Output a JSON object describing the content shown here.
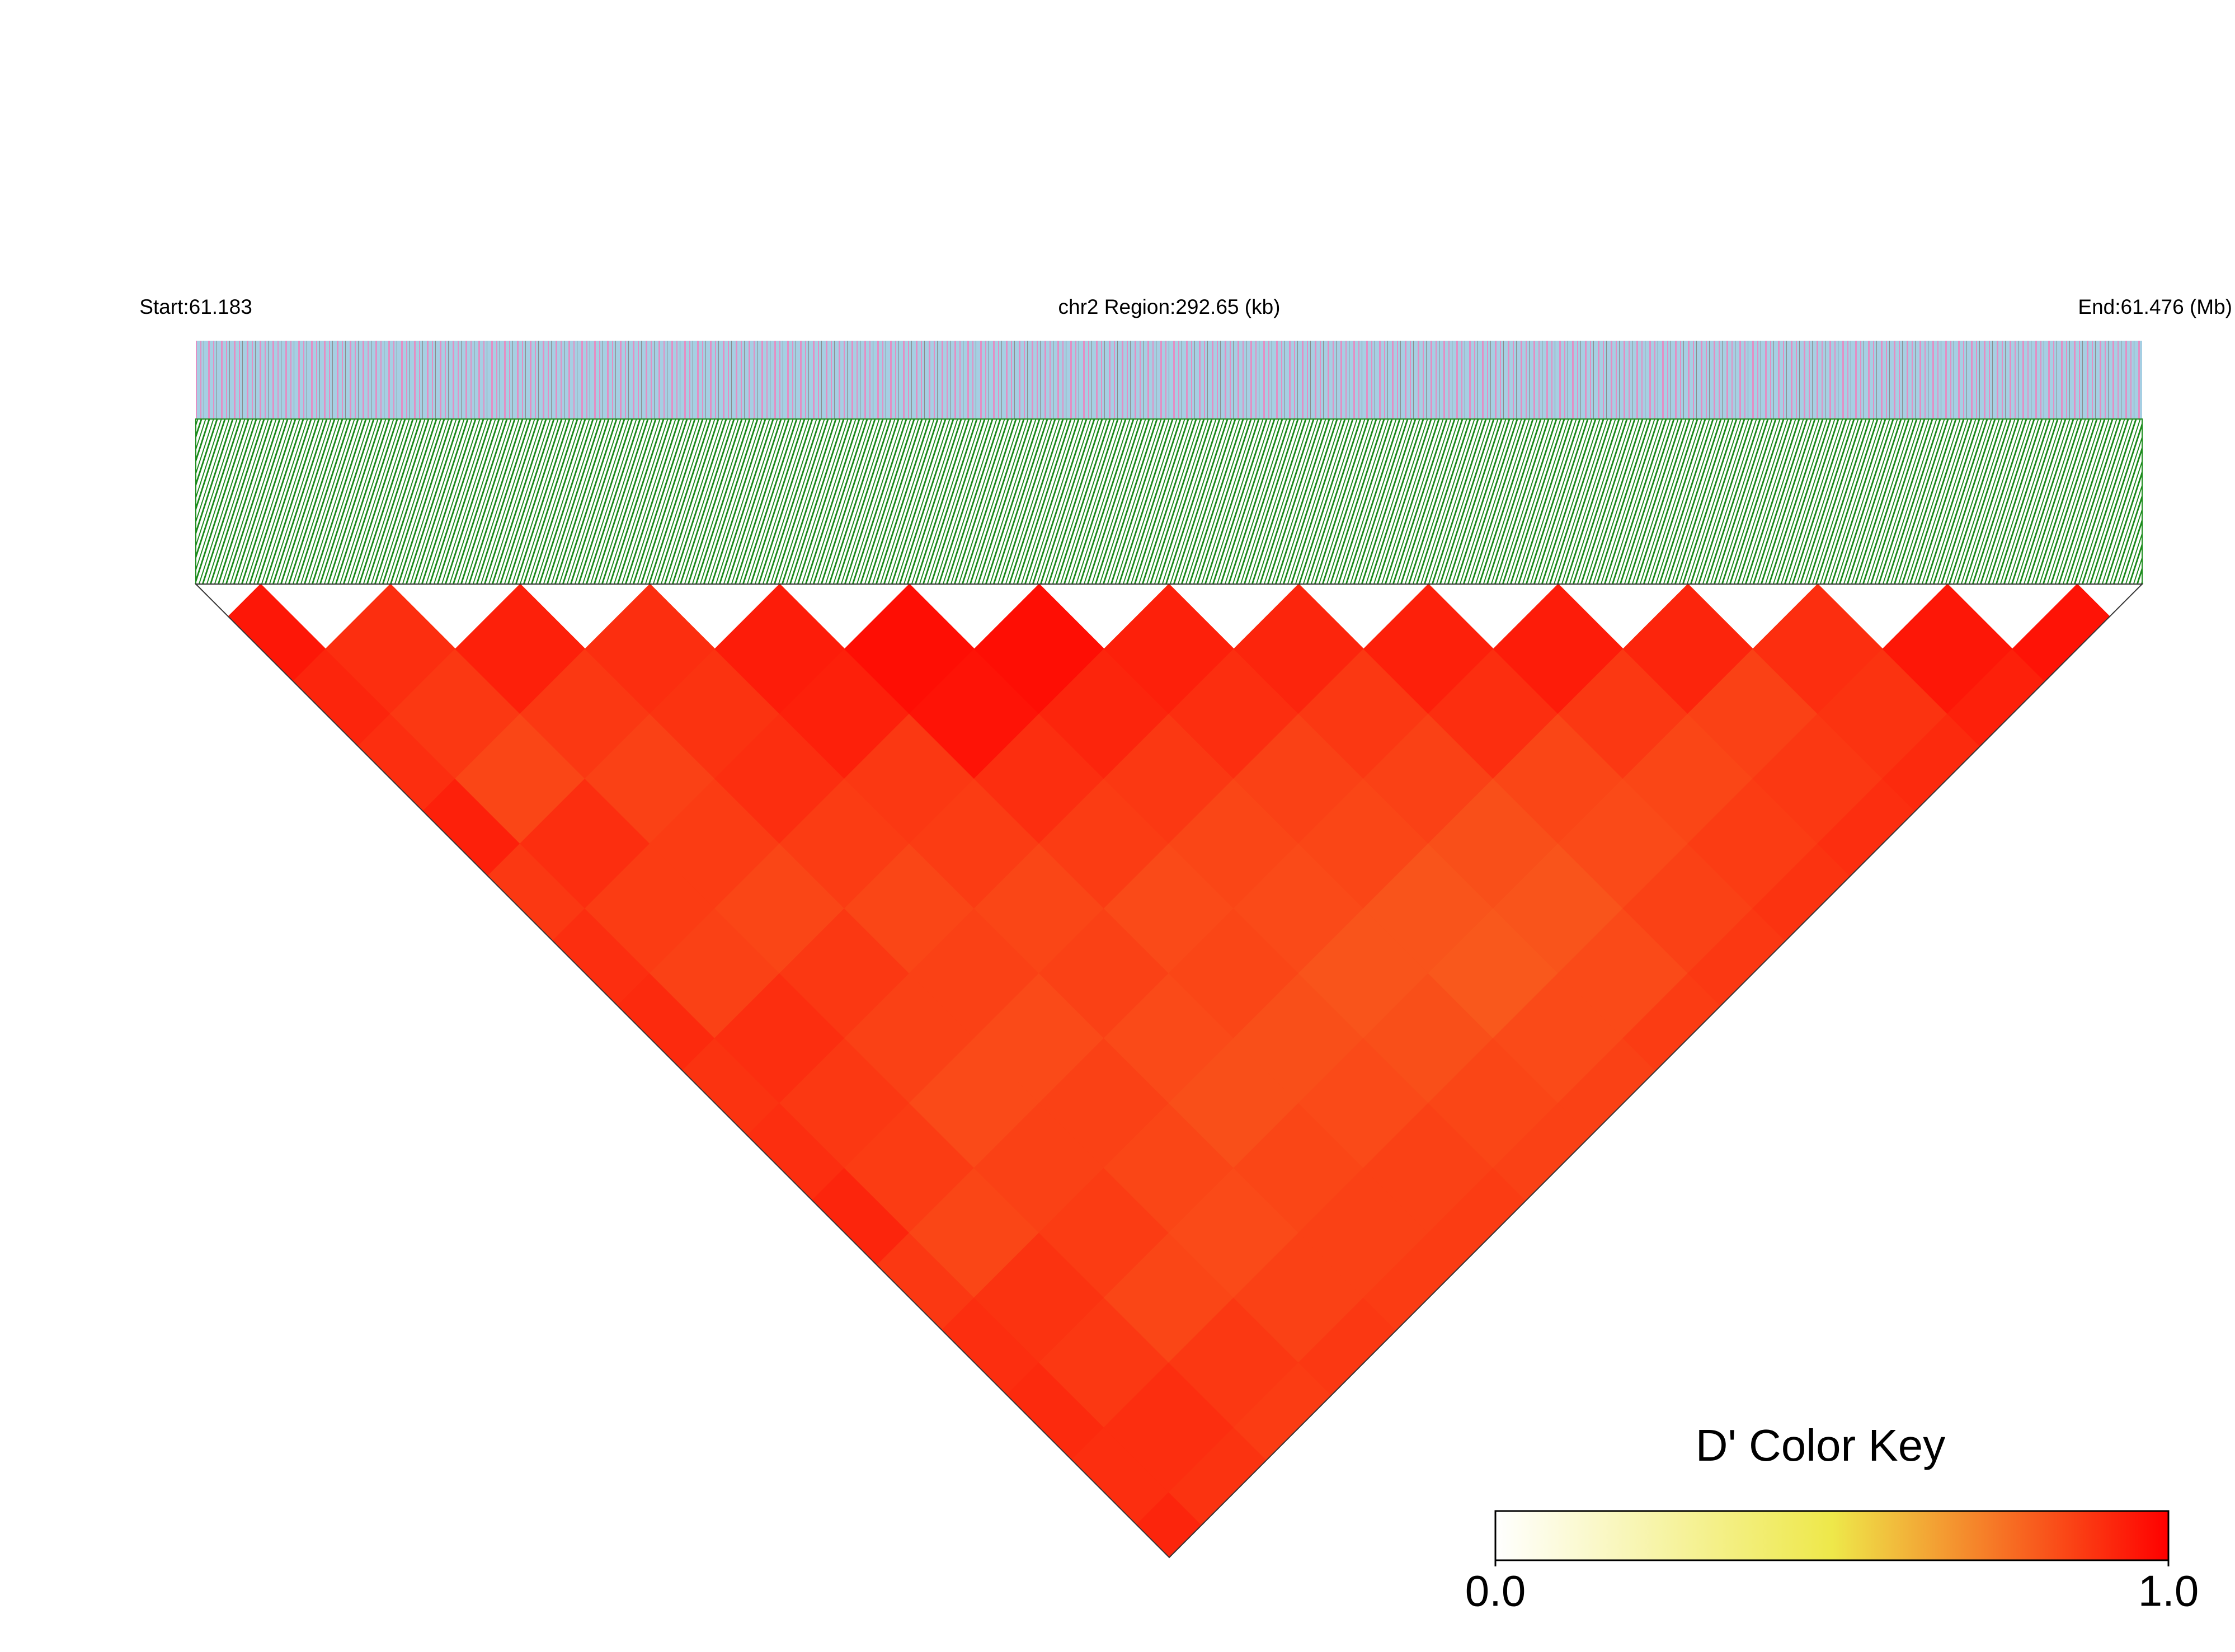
{
  "chart_data": {
    "type": "heatmap",
    "title": "chr2 Region:292.65 (kb)",
    "start_label": "Start:61.183",
    "end_label": "End:61.476 (Mb)",
    "values": [
      [
        0.95,
        0.92,
        0.9,
        0.93,
        0.88,
        0.9,
        0.91,
        0.89,
        0.9,
        0.92,
        0.88,
        0.9,
        0.91,
        0.9,
        0.92
      ],
      [
        0.9,
        0.88,
        0.85,
        0.9,
        0.87,
        0.86,
        0.9,
        0.88,
        0.87,
        0.85,
        0.89,
        0.88,
        0.9,
        0.89
      ],
      [
        0.93,
        0.88,
        0.86,
        0.87,
        0.85,
        0.88,
        0.86,
        0.84,
        0.86,
        0.87,
        0.85,
        0.88,
        0.87
      ],
      [
        0.9,
        0.89,
        0.9,
        0.87,
        0.85,
        0.86,
        0.84,
        0.86,
        0.85,
        0.84,
        0.86,
        0.88
      ],
      [
        0.94,
        0.93,
        0.88,
        0.87,
        0.85,
        0.86,
        0.84,
        0.83,
        0.85,
        0.86,
        0.87
      ],
      [
        0.97,
        0.96,
        0.9,
        0.87,
        0.84,
        0.85,
        0.83,
        0.84,
        0.86,
        0.87
      ],
      [
        0.97,
        0.92,
        0.88,
        0.85,
        0.84,
        0.82,
        0.83,
        0.85,
        0.86
      ],
      [
        0.93,
        0.9,
        0.86,
        0.85,
        0.82,
        0.81,
        0.84,
        0.86
      ],
      [
        0.92,
        0.88,
        0.86,
        0.83,
        0.82,
        0.84,
        0.87
      ],
      [
        0.93,
        0.9,
        0.85,
        0.84,
        0.86,
        0.88
      ],
      [
        0.94,
        0.88,
        0.85,
        0.87,
        0.89
      ],
      [
        0.92,
        0.86,
        0.88,
        0.9
      ],
      [
        0.9,
        0.89,
        0.91
      ],
      [
        0.95,
        0.93
      ],
      [
        0.96
      ]
    ],
    "colorbar": {
      "title": "D' Color Key",
      "lim": [
        0,
        1
      ],
      "ticks": [
        {
          "value": 0,
          "label": "0.0"
        },
        {
          "value": 1,
          "label": "1.0"
        }
      ],
      "colors": [
        "#ffffff",
        "#eee84a",
        "#ff0000"
      ]
    }
  }
}
